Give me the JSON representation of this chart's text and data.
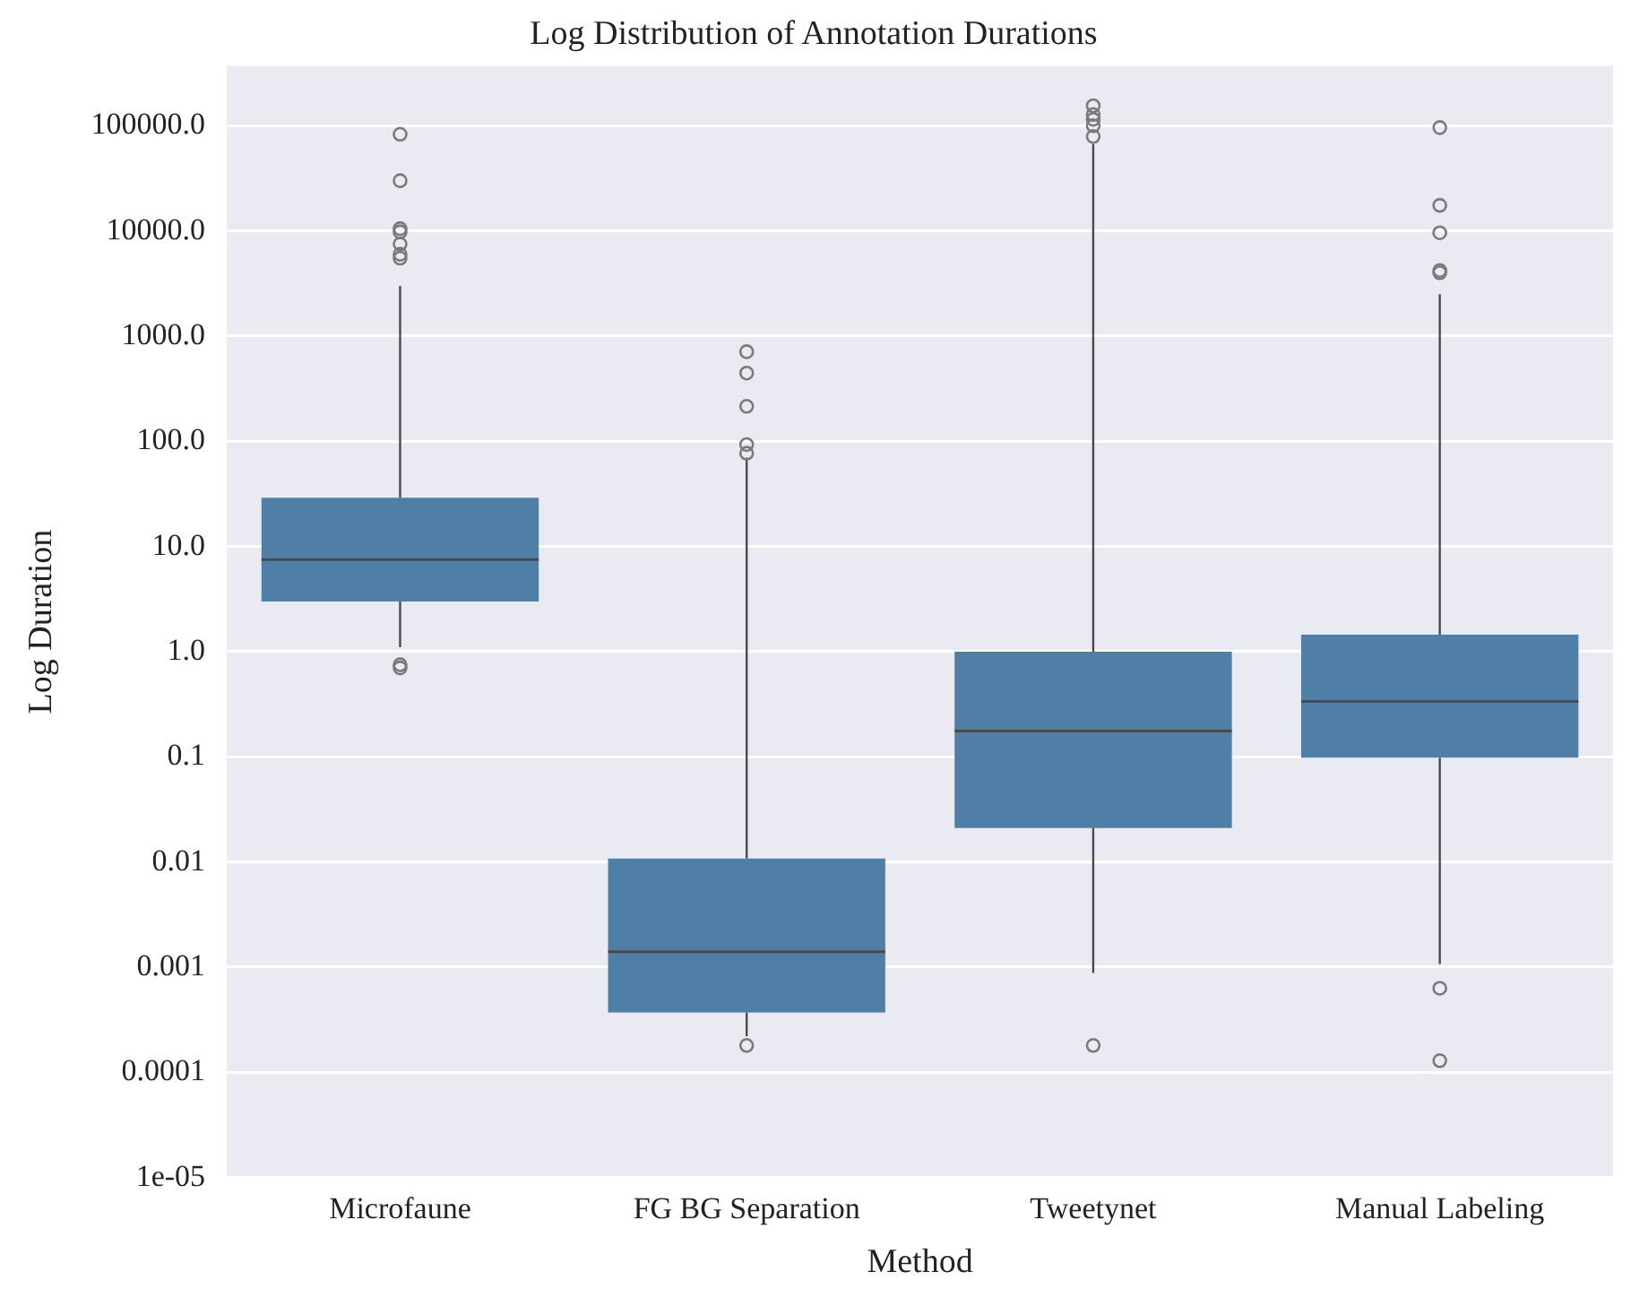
{
  "chart_data": {
    "type": "box",
    "title": "Log Distribution of Annotation Durations",
    "xlabel": "Method",
    "ylabel": "Log Duration",
    "categories": [
      "Microfaune",
      "FG BG Separation",
      "Tweetynet",
      "Manual Labeling"
    ],
    "color": "#4f7fa7",
    "boxes": [
      {
        "low": 1.1,
        "q1": 3.0,
        "median": 7.5,
        "q3": 29,
        "high": 3000,
        "outliers": [
          83000,
          30000,
          10500,
          9800,
          7500,
          6000,
          5500,
          0.75,
          0.7
        ]
      },
      {
        "low": 0.00022,
        "q1": 0.00037,
        "median": 0.0014,
        "q3": 0.0108,
        "high": 70,
        "outliers": [
          710,
          445,
          215,
          93,
          77,
          0.00018
        ]
      },
      {
        "low": 0.00088,
        "q1": 0.021,
        "median": 0.176,
        "q3": 1.0,
        "high": 67000,
        "outliers": [
          155000,
          128000,
          115000,
          100000,
          79000,
          0.00018
        ]
      },
      {
        "low": 0.00107,
        "q1": 0.098,
        "median": 0.336,
        "q3": 1.45,
        "high": 2500,
        "outliers": [
          96000,
          17500,
          9600,
          4200,
          4000,
          0.00063,
          0.000129
        ]
      }
    ],
    "log": true,
    "ylim": [
      1e-05,
      370000
    ],
    "yticks": [
      {
        "value": 1e-05,
        "label": "1e-05"
      },
      {
        "value": 0.0001,
        "label": "0.0001"
      },
      {
        "value": 0.001,
        "label": "0.001"
      },
      {
        "value": 0.01,
        "label": "0.01"
      },
      {
        "value": 0.1,
        "label": "0.1"
      },
      {
        "value": 1,
        "label": "1.0"
      },
      {
        "value": 10,
        "label": "10.0"
      },
      {
        "value": 100,
        "label": "100.0"
      },
      {
        "value": 1000,
        "label": "1000.0"
      },
      {
        "value": 10000,
        "label": "10000.0"
      },
      {
        "value": 100000,
        "label": "100000.0"
      }
    ],
    "grid": "y",
    "marker": "circle"
  }
}
